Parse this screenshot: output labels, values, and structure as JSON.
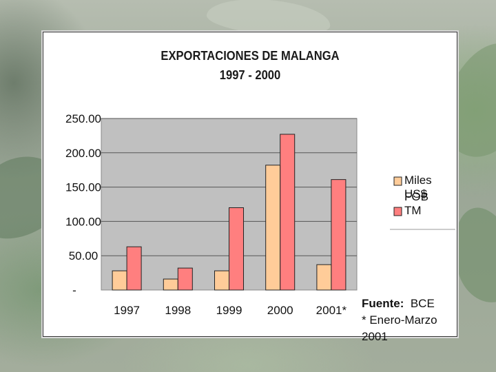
{
  "chart_data": {
    "type": "bar",
    "title": [
      "EXPORTACIONES DE MALANGA",
      "1997 - 2000"
    ],
    "categories": [
      "1997",
      "1998",
      "1999",
      "2000",
      "2001*"
    ],
    "series": [
      {
        "name": "Miles US$ FOB",
        "values": [
          28,
          16,
          28,
          182,
          37
        ],
        "color": "#ffcc99"
      },
      {
        "name": "TM",
        "values": [
          63,
          32,
          120,
          227,
          161
        ],
        "color": "#ff7f7f"
      }
    ],
    "ylim": [
      0,
      250
    ],
    "yticks": [
      {
        "value": 250,
        "label": "250.00"
      },
      {
        "value": 200,
        "label": "200.00"
      },
      {
        "value": 150,
        "label": "150.00"
      },
      {
        "value": 100,
        "label": "100.00"
      },
      {
        "value": 50,
        "label": "50.00"
      },
      {
        "value": 0,
        "label": "-"
      }
    ],
    "grid": true,
    "plot_background": "#c0c0c0",
    "legend": {
      "position": "right",
      "entries": [
        "Miles  US$",
        "FOB",
        "TM"
      ]
    }
  },
  "source": {
    "label": "Fuente:",
    "value": "BCE",
    "note": "* Enero-Marzo 2001"
  }
}
